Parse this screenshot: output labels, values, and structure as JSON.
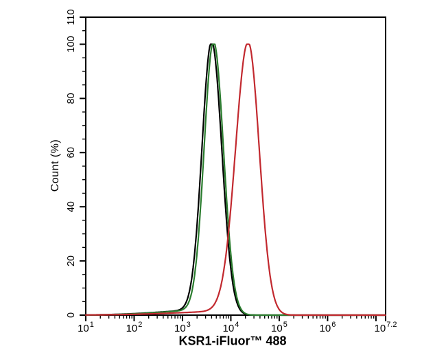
{
  "chart_data": {
    "type": "line",
    "subtype": "flow-cytometry-overlay-histogram",
    "title": "",
    "xlabel": "KSR1-iFluor™ 488",
    "ylabel": "Count (%)",
    "x_scale": "log10",
    "x_range_log10": [
      1,
      7.2
    ],
    "ylim": [
      0,
      110
    ],
    "grid": false,
    "legend": "none",
    "frame_color": "#000000",
    "y_major_ticks": [
      0,
      20,
      40,
      60,
      80,
      100,
      110
    ],
    "y_minor_tick_step": 5,
    "x_major_ticks_log10": [
      1,
      2,
      3,
      4,
      5,
      6,
      7,
      7.2
    ],
    "x_tick_labels": [
      {
        "log10": 1,
        "base": "10",
        "exp": "1"
      },
      {
        "log10": 2,
        "base": "10",
        "exp": "2"
      },
      {
        "log10": 3,
        "base": "10",
        "exp": "3"
      },
      {
        "log10": 4,
        "base": "10",
        "exp": "4"
      },
      {
        "log10": 5,
        "base": "10",
        "exp": "5"
      },
      {
        "log10": 6,
        "base": "10",
        "exp": "6"
      },
      {
        "log10": 7.2,
        "base": "10",
        "exp": "7.2"
      }
    ],
    "series": [
      {
        "name": "black-curve",
        "color": "#000000",
        "peak_x": 4000,
        "peak_log10_x": 3.605,
        "peak_y_percent": 100,
        "sigma_left_decades": 0.2,
        "sigma_right_decades": 0.21,
        "baseline_tail_percent": 2.0
      },
      {
        "name": "green-curve",
        "color": "#2b7d2f",
        "peak_x": 4400,
        "peak_log10_x": 3.645,
        "peak_y_percent": 100,
        "sigma_left_decades": 0.195,
        "sigma_right_decades": 0.205,
        "baseline_tail_percent": 2.0
      },
      {
        "name": "red-curve",
        "color": "#c2292f",
        "peak_x": 22900,
        "peak_log10_x": 4.36,
        "peak_y_percent": 100,
        "sigma_left_decades": 0.26,
        "sigma_right_decades": 0.23,
        "baseline_tail_percent": 1.6
      }
    ]
  }
}
